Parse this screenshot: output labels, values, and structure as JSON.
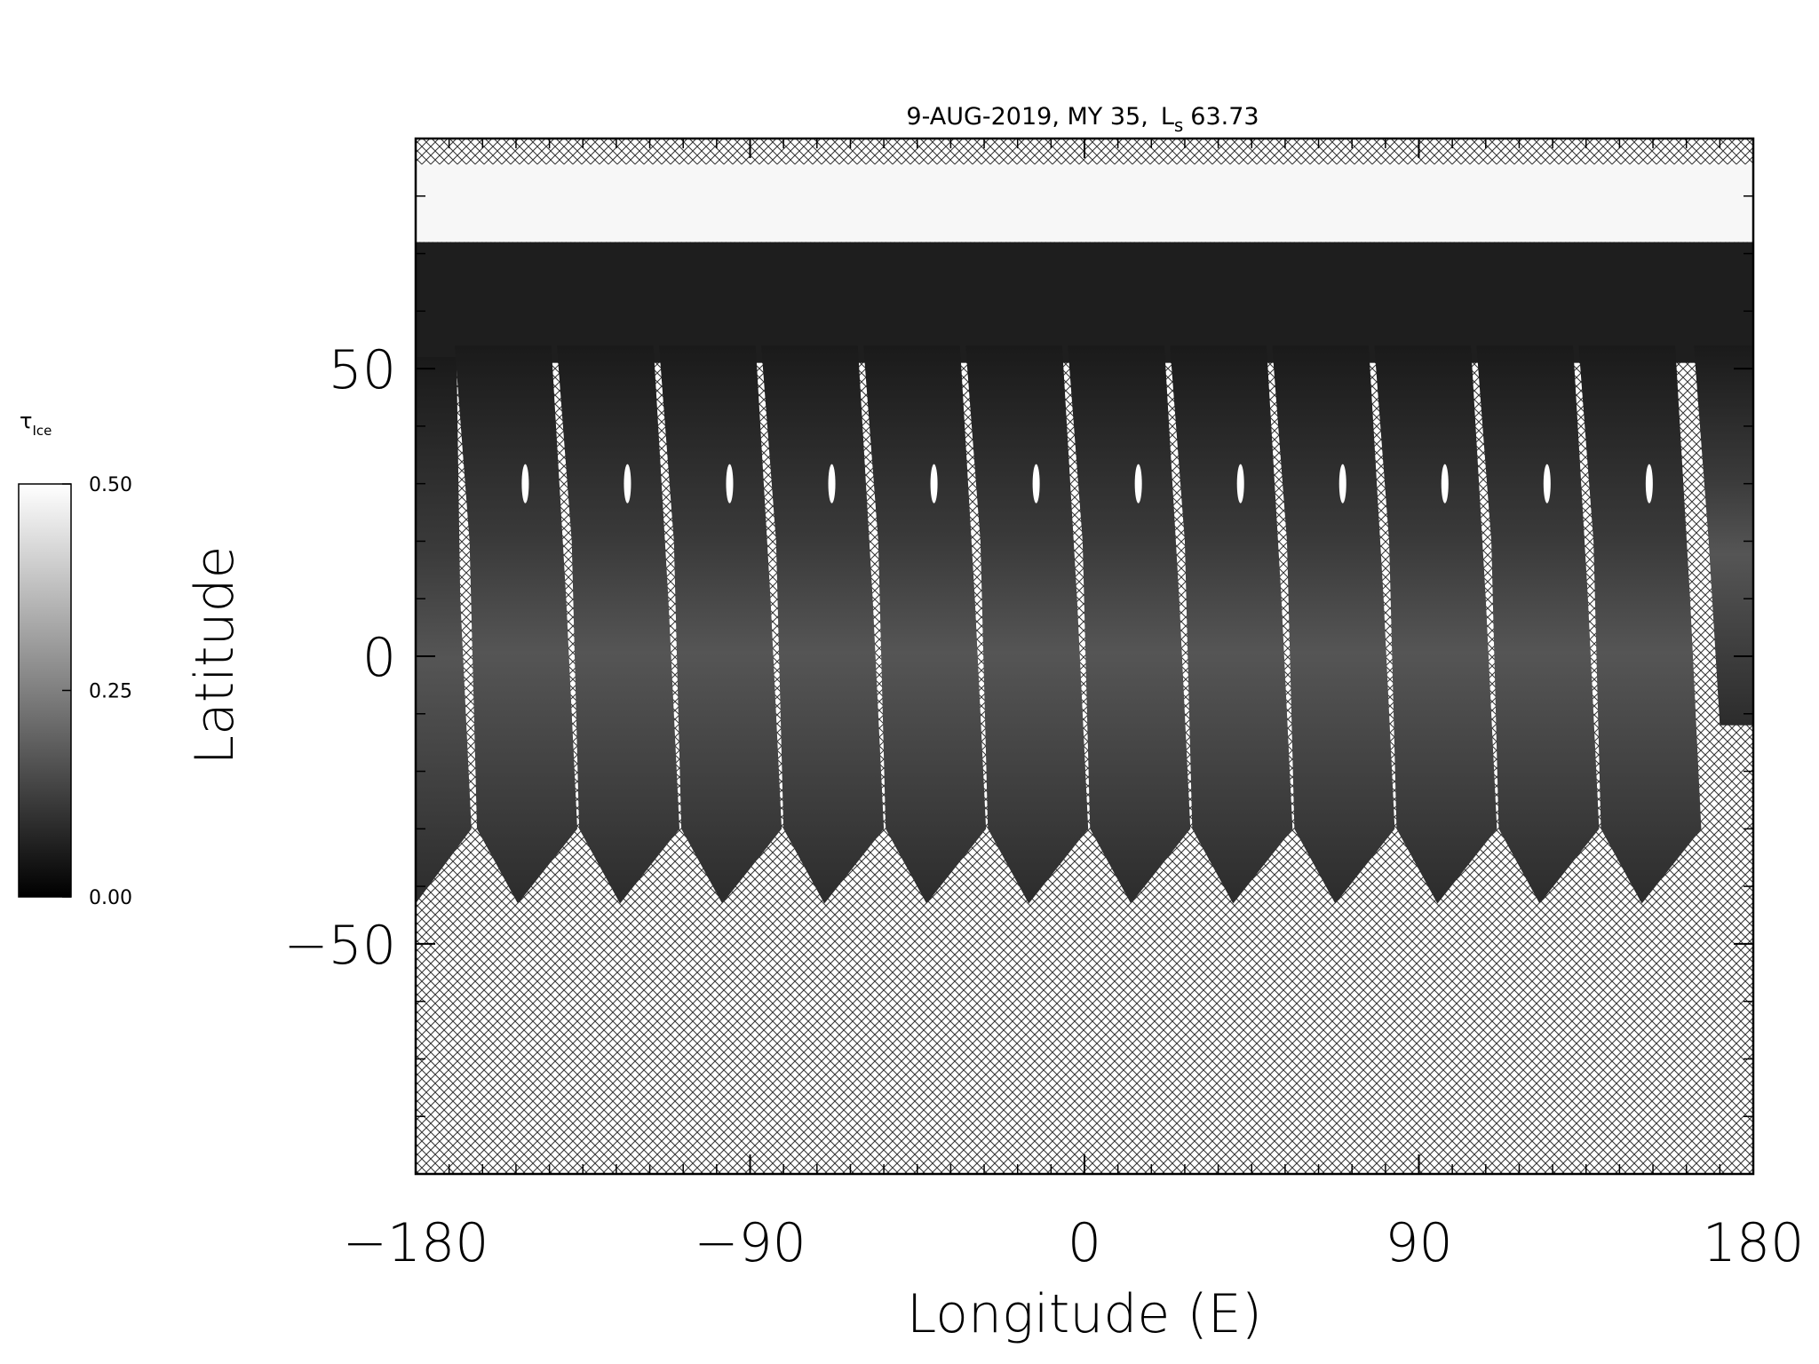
{
  "chart_data": {
    "type": "map",
    "title_prefix": "9-AUG-2019, MY 35,",
    "title_symbol": "L",
    "title_subscript": "s",
    "title_suffix": "63.73",
    "x_label": "Longitude (E)",
    "y_label": "Latitude",
    "xlim": [
      -180,
      180
    ],
    "ylim": [
      -90,
      90
    ],
    "xticks": [
      {
        "value": -180,
        "label": "−180"
      },
      {
        "value": -90,
        "label": "−90"
      },
      0,
      90,
      180
    ],
    "yticks": [
      {
        "value": -50,
        "label": "−50"
      },
      0,
      50
    ],
    "colorbar": {
      "label": "τ",
      "label_subscript": "Ice",
      "lim": [
        0,
        0.5
      ],
      "ticks": [
        {
          "value": 0,
          "label": "0.00"
        },
        {
          "value": 0.25,
          "label": "0.25"
        },
        {
          "value": 0.5,
          "label": "0.50"
        }
      ]
    }
  }
}
